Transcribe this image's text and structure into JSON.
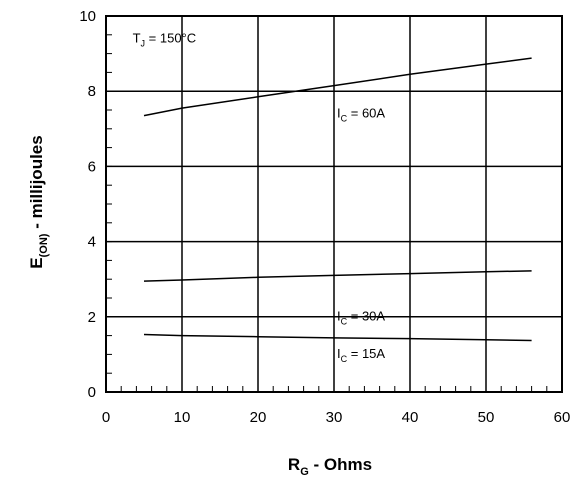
{
  "chart_data": {
    "type": "line",
    "xlabel": {
      "main": "R",
      "sub": "G",
      "rest": " - Ohms"
    },
    "ylabel": {
      "main": "E",
      "sub": "(ON)",
      "rest": " - millijoules"
    },
    "xlim": [
      0,
      60
    ],
    "ylim": [
      0,
      10
    ],
    "x_major_ticks": [
      0,
      10,
      20,
      30,
      40,
      50,
      60
    ],
    "y_major_ticks": [
      0,
      2,
      4,
      6,
      8,
      10
    ],
    "x_minor_step": 2,
    "y_minor_step": 0.5,
    "grid": true,
    "series": [
      {
        "label_main": "I",
        "label_sub": "C",
        "label_rest": " = 60A",
        "label_at": [
          30,
          7.3
        ],
        "x": [
          5,
          10,
          20,
          30,
          40,
          50,
          56
        ],
        "y": [
          7.35,
          7.55,
          7.85,
          8.15,
          8.45,
          8.72,
          8.88
        ]
      },
      {
        "label_main": "I",
        "label_sub": "C",
        "label_rest": " = 30A",
        "label_at": [
          30,
          1.9
        ],
        "x": [
          5,
          10,
          20,
          30,
          40,
          50,
          56
        ],
        "y": [
          2.95,
          2.98,
          3.05,
          3.1,
          3.15,
          3.2,
          3.22
        ]
      },
      {
        "label_main": "I",
        "label_sub": "C",
        "label_rest": " = 15A",
        "label_at": [
          30,
          0.9
        ],
        "x": [
          5,
          10,
          20,
          30,
          40,
          50,
          56
        ],
        "y": [
          1.53,
          1.5,
          1.47,
          1.44,
          1.42,
          1.39,
          1.37
        ]
      }
    ],
    "annotations": [
      {
        "main": "T",
        "sub": "J",
        "rest": " = 150°C",
        "at": [
          3.5,
          9.3
        ]
      }
    ]
  }
}
